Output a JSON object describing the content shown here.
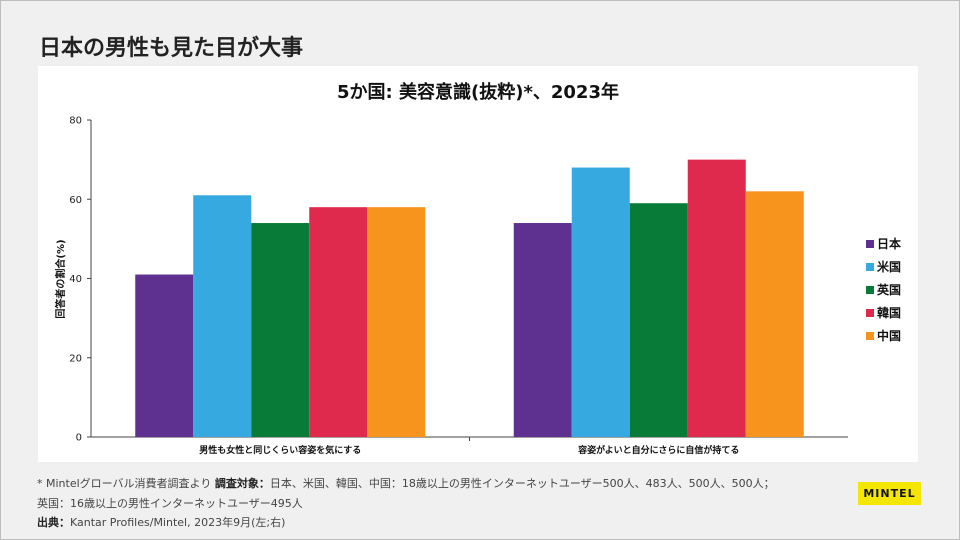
{
  "slide": {
    "title": "日本の男性も見た目が大事"
  },
  "chart_data": {
    "type": "bar",
    "title": "5か国: 美容意識(抜粋)*、2023年",
    "xlabel": "",
    "ylabel": "回答者の割合(%)",
    "ylim": [
      0,
      80
    ],
    "yticks": [
      0,
      20,
      40,
      60,
      80
    ],
    "categories": [
      "男性も女性と同じくらい容姿を気にする",
      "容姿がよいと自分にさらに自信が持てる"
    ],
    "series": [
      {
        "name": "日本",
        "color": "#5e3190",
        "values": [
          41,
          54
        ]
      },
      {
        "name": "米国",
        "color": "#36a9e1",
        "values": [
          61,
          68
        ]
      },
      {
        "name": "英国",
        "color": "#097b39",
        "values": [
          54,
          59
        ]
      },
      {
        "name": "韓国",
        "color": "#df2a4d",
        "values": [
          58,
          70
        ]
      },
      {
        "name": "中国",
        "color": "#f7941d",
        "values": [
          58,
          62
        ]
      }
    ],
    "legend_position": "right"
  },
  "footnotes": {
    "line1_prefix": "* Mintelグローバル消費者調査より ",
    "line1_bold": "調査対象：",
    "line1_rest": "日本、米国、韓国、中国：18歳以上の男性インターネットユーザー500人、483人、500人、500人；",
    "line2": "英国：16歳以上の男性インターネットユーザー495人",
    "line3_bold": "出典：",
    "line3_rest": "Kantar Profiles/Mintel, 2023年9月(左;右)"
  },
  "logo": {
    "text": "MINTEL"
  }
}
